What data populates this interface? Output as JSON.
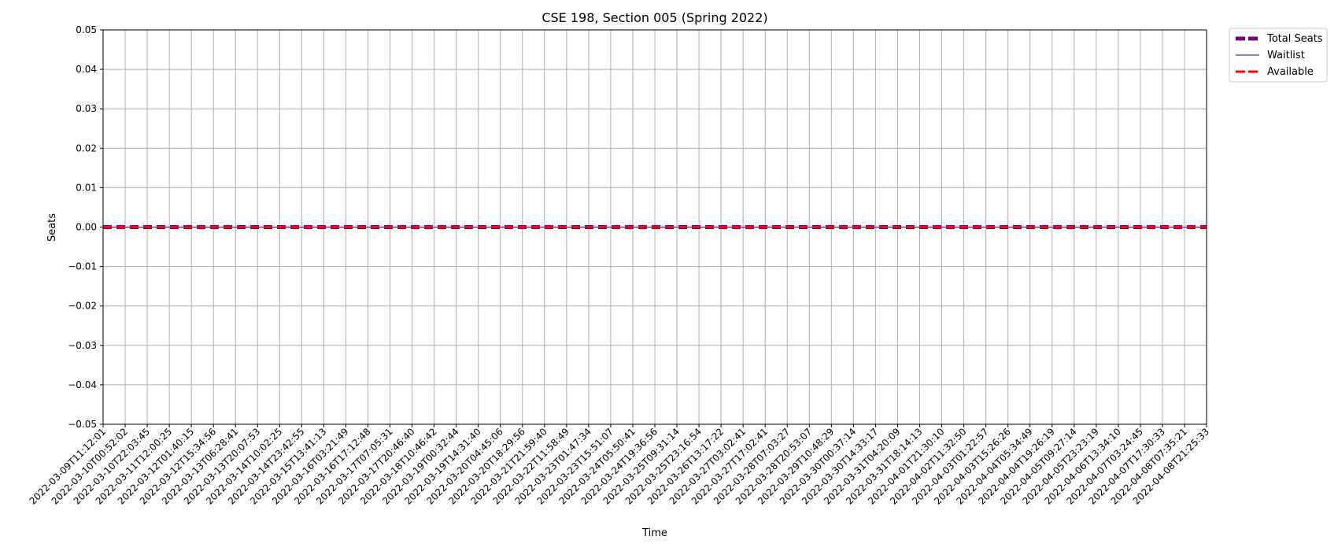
{
  "chart_data": {
    "type": "line",
    "title": "CSE 198, Section 005 (Spring 2022)",
    "xlabel": "Time",
    "ylabel": "Seats",
    "ylim": [
      -0.05,
      0.05
    ],
    "yticks": [
      "−0.05",
      "−0.04",
      "−0.03",
      "−0.02",
      "−0.01",
      "0.00",
      "0.01",
      "0.02",
      "0.03",
      "0.04",
      "0.05"
    ],
    "ytick_values": [
      -0.05,
      -0.04,
      -0.03,
      -0.02,
      -0.01,
      0.0,
      0.01,
      0.02,
      0.03,
      0.04,
      0.05
    ],
    "grid": true,
    "legend_position": "outside-top-right",
    "x": [
      "2022-03-09T11:12:01",
      "2022-03-10T00:52:02",
      "2022-03-10T22:03:45",
      "2022-03-11T12:00:25",
      "2022-03-12T01:40:15",
      "2022-03-12T15:34:56",
      "2022-03-13T06:28:41",
      "2022-03-13T20:07:53",
      "2022-03-14T10:02:25",
      "2022-03-14T23:42:55",
      "2022-03-15T13:41:13",
      "2022-03-16T03:21:49",
      "2022-03-16T17:12:48",
      "2022-03-17T07:05:31",
      "2022-03-17T20:46:40",
      "2022-03-18T10:46:42",
      "2022-03-19T00:32:44",
      "2022-03-19T14:31:40",
      "2022-03-20T04:45:06",
      "2022-03-20T18:29:56",
      "2022-03-21T21:59:40",
      "2022-03-22T11:58:49",
      "2022-03-23T01:47:34",
      "2022-03-23T15:51:07",
      "2022-03-24T05:50:41",
      "2022-03-24T19:36:56",
      "2022-03-25T09:31:14",
      "2022-03-25T23:16:54",
      "2022-03-26T13:17:22",
      "2022-03-27T03:02:41",
      "2022-03-27T17:02:41",
      "2022-03-28T07:03:27",
      "2022-03-28T20:53:07",
      "2022-03-29T10:48:29",
      "2022-03-30T00:37:14",
      "2022-03-30T14:33:17",
      "2022-03-31T04:20:09",
      "2022-03-31T18:14:13",
      "2022-04-01T21:30:10",
      "2022-04-02T11:32:50",
      "2022-04-03T01:22:57",
      "2022-04-03T15:26:26",
      "2022-04-04T05:34:49",
      "2022-04-04T19:26:19",
      "2022-04-05T09:27:14",
      "2022-04-05T23:23:19",
      "2022-04-06T13:34:10",
      "2022-04-07T03:24:45",
      "2022-04-07T17:30:33",
      "2022-04-08T07:35:21",
      "2022-04-08T21:25:33"
    ],
    "series": [
      {
        "name": "Total Seats",
        "value": 0,
        "color": "#800080",
        "style": "dashed-thick"
      },
      {
        "name": "Waitlist",
        "value": 0,
        "color": "#0000ff",
        "style": "thin"
      },
      {
        "name": "Available",
        "value": 0,
        "color": "#ff0000",
        "style": "dashed"
      }
    ]
  }
}
